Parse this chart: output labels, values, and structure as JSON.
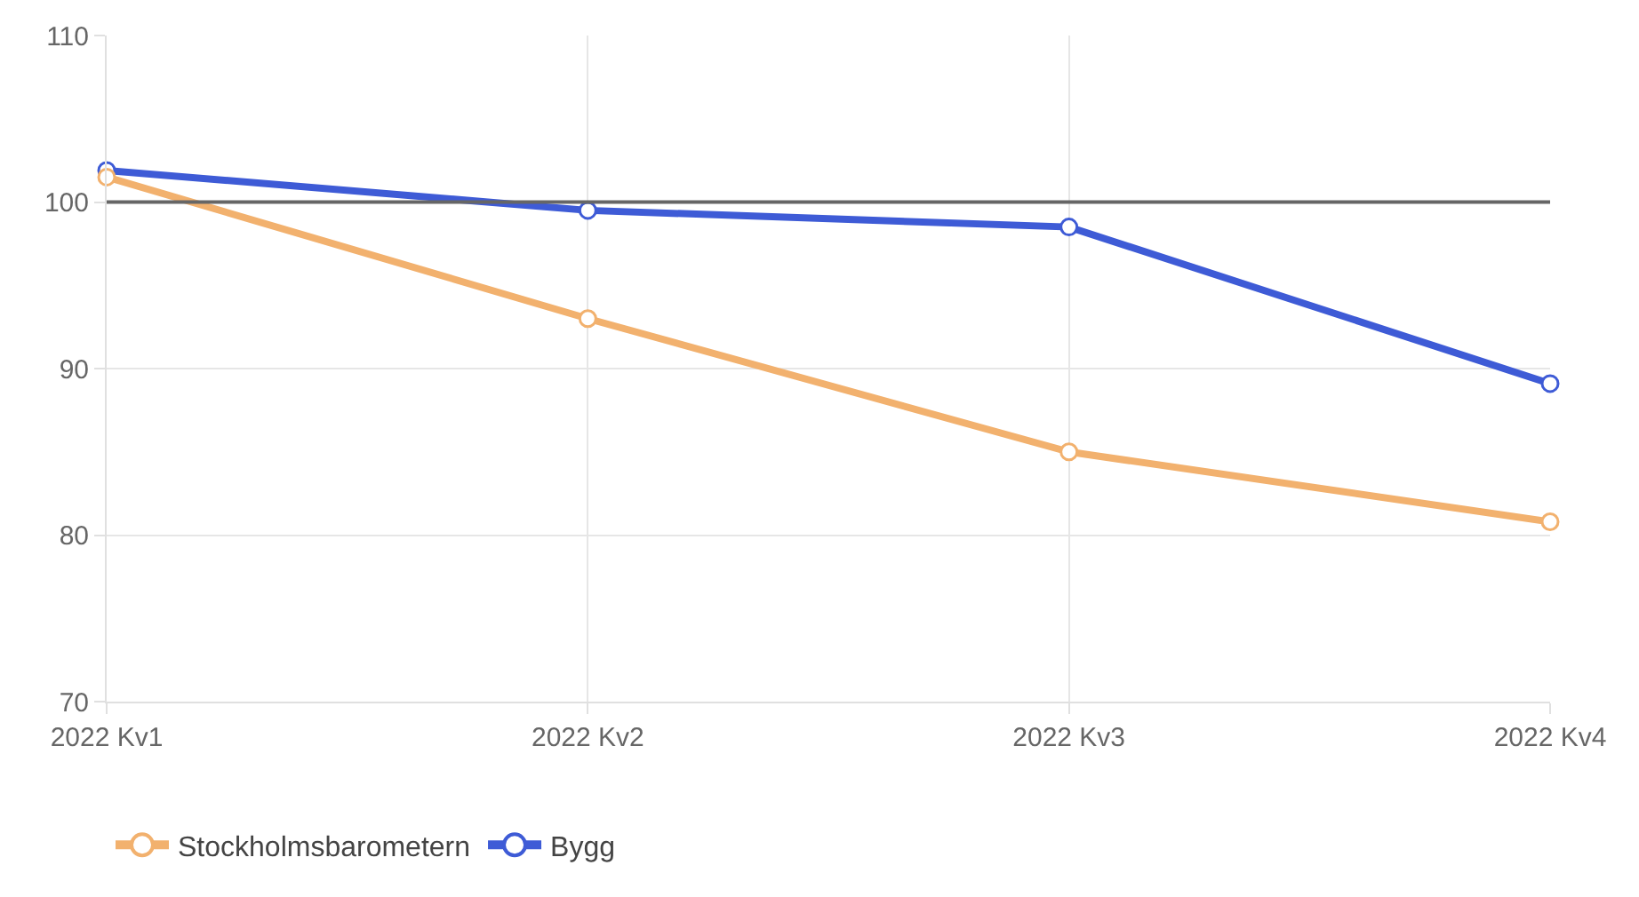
{
  "chart_data": {
    "type": "line",
    "categories": [
      "2022 Kv1",
      "2022 Kv2",
      "2022 Kv3",
      "2022 Kv4"
    ],
    "series": [
      {
        "name": "Stockholmsbarometern",
        "color": "#f2b16e",
        "values": [
          101.5,
          93.0,
          85.0,
          80.8
        ]
      },
      {
        "name": "Bygg",
        "color": "#3e5bd6",
        "values": [
          101.9,
          99.5,
          98.5,
          89.1
        ]
      }
    ],
    "ylim": [
      70,
      110
    ],
    "yticks": [
      70,
      80,
      90,
      100,
      110
    ],
    "ref_lines": [
      {
        "axis": "y",
        "value": 100,
        "color": "#666666"
      }
    ],
    "grid": true,
    "legend": "bottom left",
    "marker": "circle",
    "line_style": "solid"
  }
}
